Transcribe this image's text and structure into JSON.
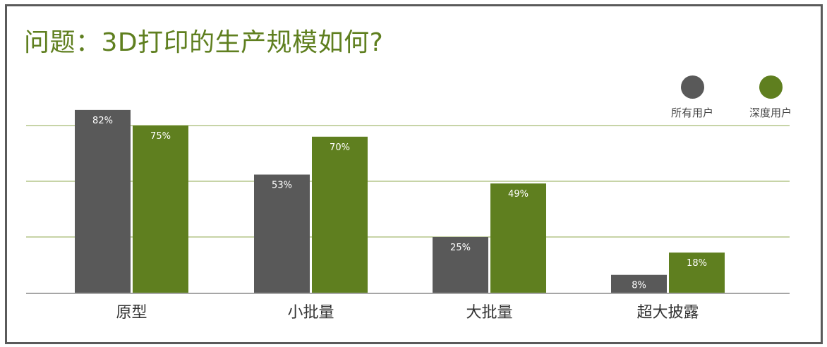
{
  "chart_data": {
    "type": "bar",
    "title": "问题：3D打印的生产规模如何?",
    "categories": [
      "原型",
      "小批量",
      "大批量",
      "超大披露"
    ],
    "series": [
      {
        "name": "所有用户",
        "values": [
          82,
          53,
          25,
          8
        ],
        "color": "#595959"
      },
      {
        "name": "深度用户",
        "values": [
          75,
          70,
          49,
          18
        ],
        "color": "#5f7f1f"
      }
    ],
    "value_suffix": "%",
    "ylim": [
      0,
      90
    ],
    "grid": true,
    "legend_position": "top-right"
  }
}
